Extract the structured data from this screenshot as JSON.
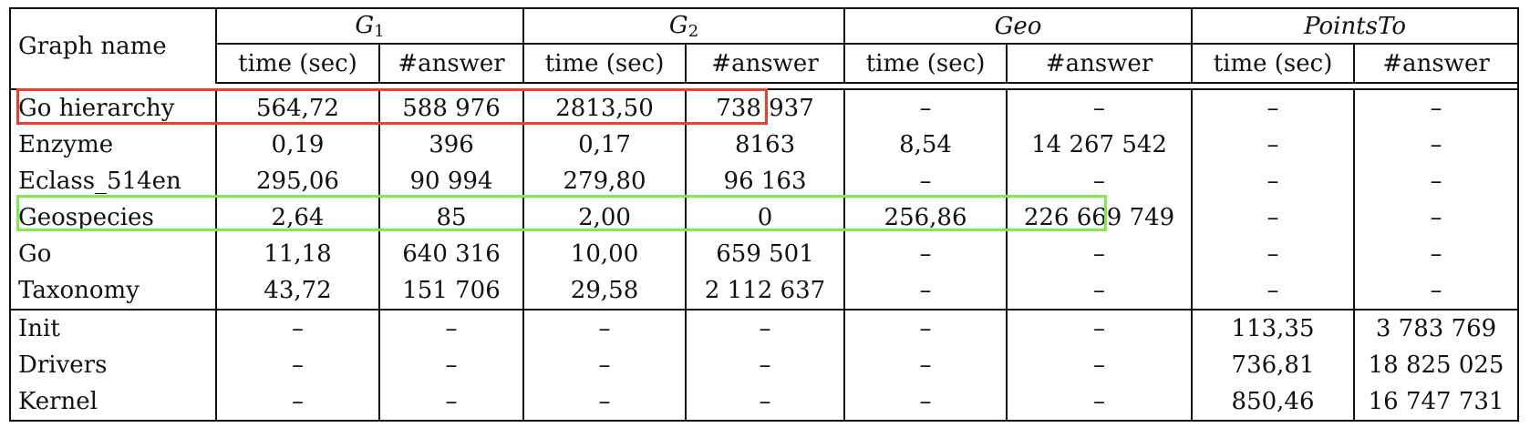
{
  "header": {
    "graph_name": "Graph name",
    "groups": [
      {
        "base": "G",
        "sub": "1",
        "italic": true
      },
      {
        "base": "G",
        "sub": "2",
        "italic": true
      },
      {
        "base": "Geo",
        "sub": "",
        "italic": true
      },
      {
        "base": "PointsTo",
        "sub": "",
        "italic": true
      }
    ],
    "sub_columns": [
      "time (sec)",
      "#answer",
      "time (sec)",
      "#answer",
      "time (sec)",
      "#answer",
      "time (sec)",
      "#answer"
    ]
  },
  "rows": [
    {
      "name": "Go hierarchy",
      "cells": [
        "564,72",
        "588 976",
        "2813,50",
        "738 937",
        "–",
        "–",
        "–",
        "–"
      ],
      "highlight": "red"
    },
    {
      "name": "Enzyme",
      "cells": [
        "0,19",
        "396",
        "0,17",
        "8163",
        "8,54",
        "14 267 542",
        "–",
        "–"
      ]
    },
    {
      "name": "Eclass_514en",
      "cells": [
        "295,06",
        "90 994",
        "279,80",
        "96 163",
        "–",
        "–",
        "–",
        "–"
      ]
    },
    {
      "name": "Geospecies",
      "cells": [
        "2,64",
        "85",
        "2,00",
        "0",
        "256,86",
        "226 669 749",
        "–",
        "–"
      ],
      "highlight": "green"
    },
    {
      "name": "Go",
      "cells": [
        "11,18",
        "640 316",
        "10,00",
        "659 501",
        "–",
        "–",
        "–",
        "–"
      ]
    },
    {
      "name": "Taxonomy",
      "cells": [
        "43,72",
        "151 706",
        "29,58",
        "2 112 637",
        "–",
        "–",
        "–",
        "–"
      ]
    },
    {
      "name": "Init",
      "cells": [
        "–",
        "–",
        "–",
        "–",
        "–",
        "–",
        "113,35",
        "3 783 769"
      ]
    },
    {
      "name": "Drivers",
      "cells": [
        "–",
        "–",
        "–",
        "–",
        "–",
        "–",
        "736,81",
        "18 825 025"
      ]
    },
    {
      "name": "Kernel",
      "cells": [
        "–",
        "–",
        "–",
        "–",
        "–",
        "–",
        "850,46",
        "16 747 731"
      ]
    }
  ],
  "colors": {
    "highlight_red": "#e8412b",
    "highlight_green": "#7eea4f",
    "text": "#111111"
  }
}
